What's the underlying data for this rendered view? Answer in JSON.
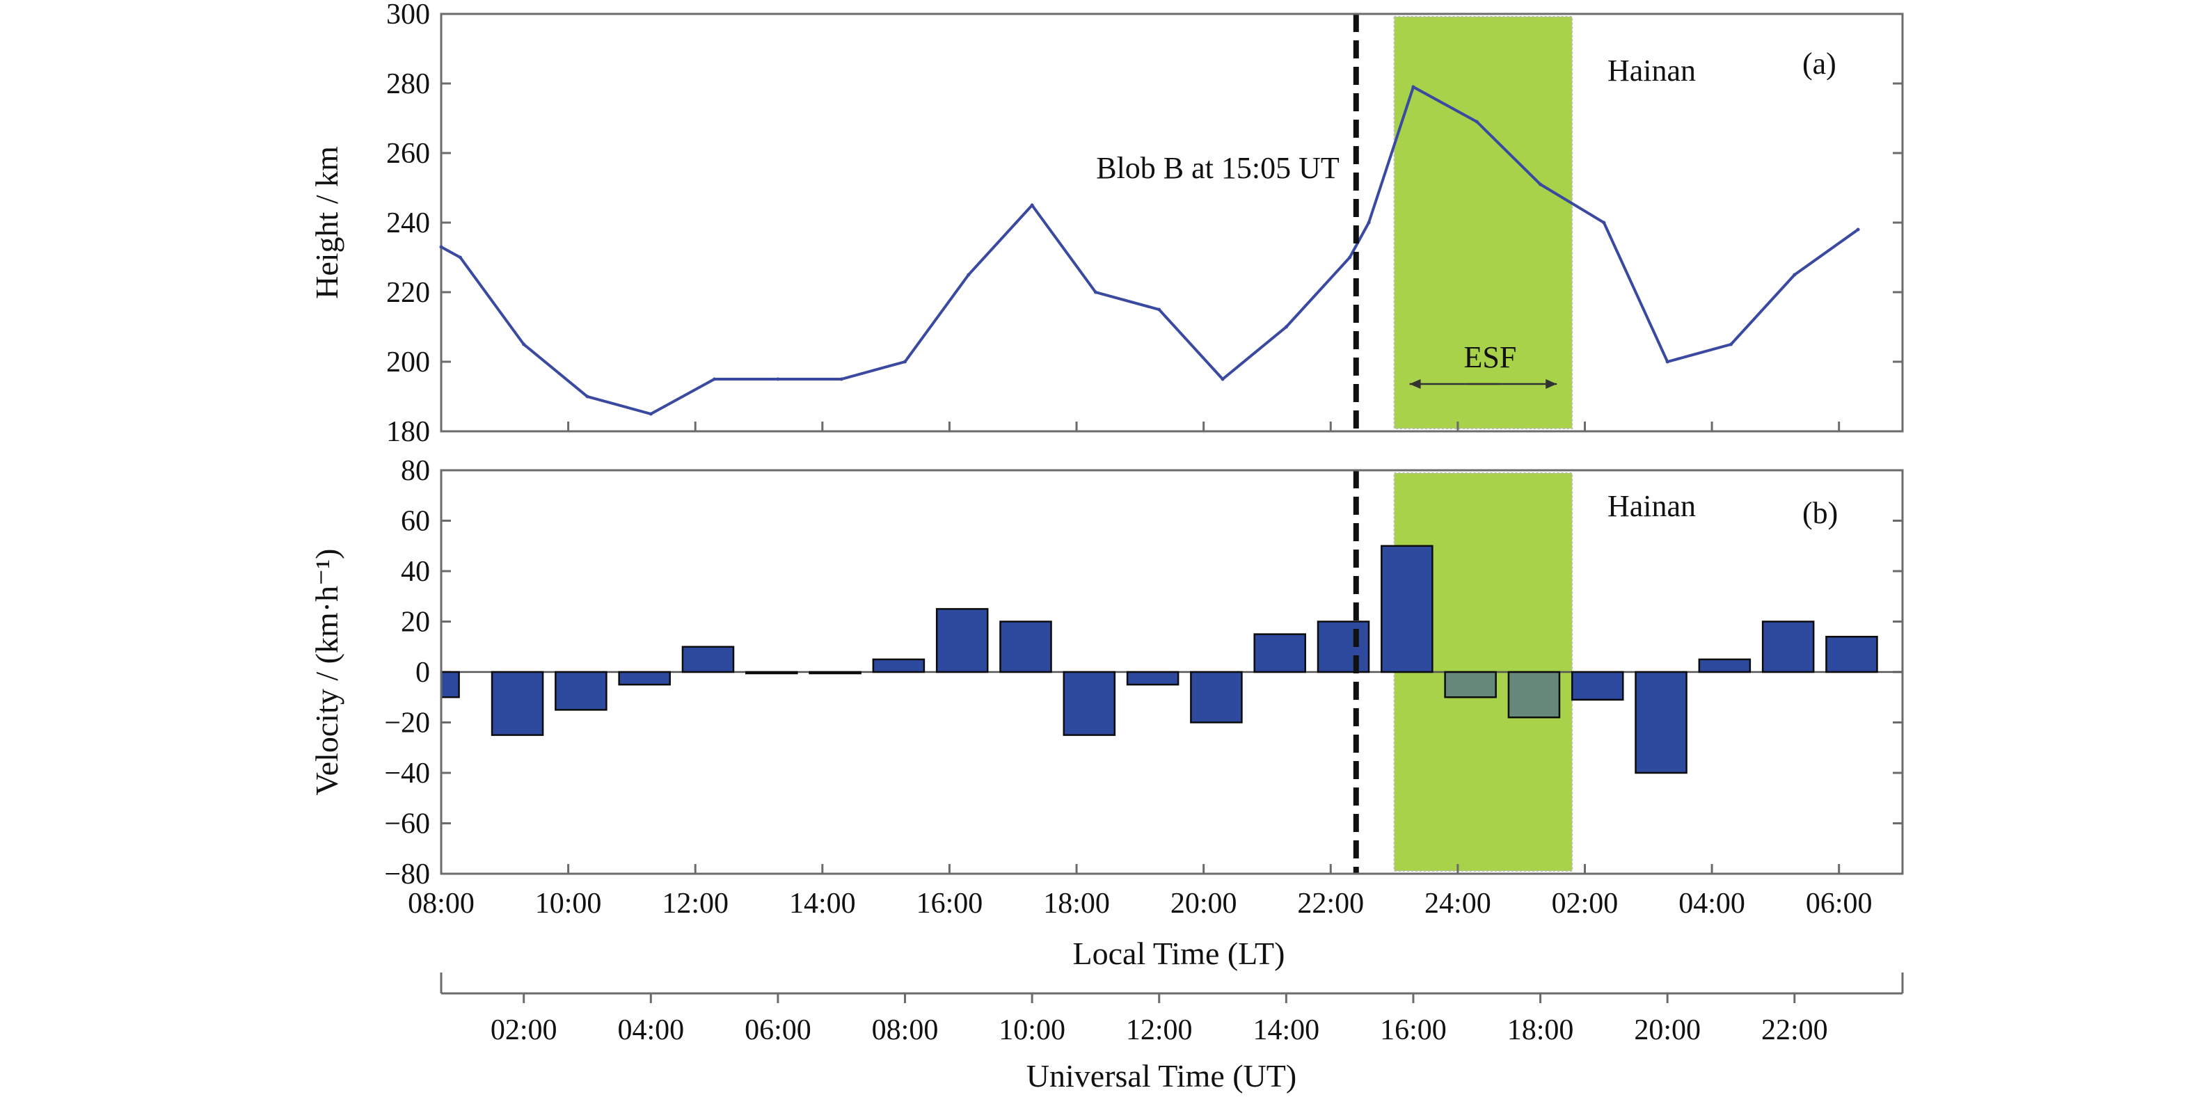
{
  "chart_data": [
    {
      "type": "line",
      "panel_label": "(a)",
      "station_label": "Hainan",
      "ylabel": "Height / km",
      "ylim": [
        180,
        300
      ],
      "yticks": [
        "180",
        "200",
        "220",
        "240",
        "260",
        "280",
        "300"
      ],
      "x_unit": "hours from 08:00 LT",
      "xlim": [
        0,
        23
      ],
      "x": [
        0,
        0.3,
        1.3,
        2.3,
        3.3,
        4.3,
        5.3,
        6.3,
        7.3,
        8.3,
        9.3,
        10.3,
        11.3,
        12.3,
        13.3,
        14.3,
        14.6,
        15.3,
        16.3,
        17.3,
        18.3,
        19.3,
        20.3,
        21.3,
        22.3
      ],
      "values": [
        233,
        230,
        205,
        190,
        185,
        195,
        195,
        195,
        200,
        225,
        245,
        220,
        215,
        195,
        210,
        230,
        240,
        279,
        269,
        251,
        240,
        200,
        205,
        225,
        238
      ],
      "series_color": "#3a4aa0",
      "annotations": {
        "event_label": "Blob B at 15:05 UT",
        "esf_label": "ESF"
      }
    },
    {
      "type": "bar",
      "panel_label": "(b)",
      "station_label": "Hainan",
      "ylabel": "Velocity / (km·h⁻¹)",
      "ylim": [
        -80,
        80
      ],
      "yticks": [
        "−80",
        "−60",
        "−40",
        "−20",
        "0",
        "20",
        "40",
        "60",
        "80"
      ],
      "x_unit": "hours from 08:00 LT",
      "xlim": [
        0,
        23
      ],
      "bar_width_hours": 0.8,
      "x": [
        0,
        0.8,
        1.8,
        2.8,
        3.8,
        4.8,
        5.8,
        6.8,
        7.8,
        8.8,
        9.8,
        10.8,
        11.8,
        12.8,
        13.8,
        14.8,
        15.8,
        16.8,
        17.8,
        18.8,
        19.8,
        20.8,
        21.8
      ],
      "values": [
        -10,
        -25,
        -15,
        -5,
        10,
        0,
        0,
        5,
        25,
        20,
        -25,
        -5,
        -20,
        15,
        20,
        50,
        -10,
        -18,
        -11,
        -40,
        5,
        20,
        14
      ],
      "bar_color": "#2e4a9e"
    }
  ],
  "esf_window_hours": [
    15.0,
    17.8
  ],
  "event_line_hours": 14.4,
  "local_time_axis": {
    "title": "Local Time (LT)",
    "ticks": [
      "08:00",
      "10:00",
      "12:00",
      "14:00",
      "16:00",
      "18:00",
      "20:00",
      "22:00",
      "24:00",
      "02:00",
      "04:00",
      "06:00"
    ]
  },
  "universal_time_axis": {
    "title": "Universal Time (UT)",
    "ticks": [
      "02:00",
      "04:00",
      "06:00",
      "08:00",
      "10:00",
      "12:00",
      "14:00",
      "16:00",
      "18:00",
      "20:00",
      "22:00"
    ]
  },
  "colors": {
    "esf_fill": "#a8d24a",
    "line": "#3a4aa0",
    "bar": "#2e4a9e",
    "event_line": "#111111"
  }
}
